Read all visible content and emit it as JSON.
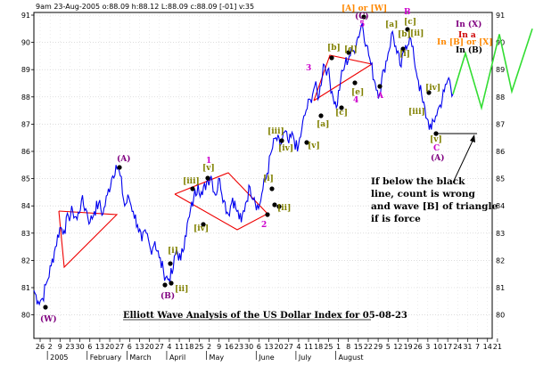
{
  "header": {
    "text": "9am 23-Aug-2005  o:88.09 h:88.12 L:88.09 c:88.09 [-01] v:35"
  },
  "colors": {
    "price": "#0000ee",
    "triangle": "#ee0000",
    "projection": "#33dd33",
    "bracket_label": "#808000",
    "pivot": "#000000",
    "major_label": "#800080",
    "minor_label": "#cc00cc",
    "orange_label": "#ff8800",
    "red_label": "#cc0000"
  },
  "chart_data": {
    "type": "line",
    "title": "Elliott Wave Analysis of the US Dollar Index for 05-08-23",
    "xlabel": "",
    "ylabel": "",
    "ylim": [
      80,
      91
    ],
    "y_ticks": [
      80,
      81,
      82,
      83,
      84,
      85,
      86,
      87,
      88,
      89,
      90,
      91
    ],
    "grid": true,
    "x_tick_labels": [
      "26",
      "2",
      "9",
      "23",
      "30",
      "6",
      "13",
      "20",
      "27",
      "6",
      "13",
      "20",
      "27",
      "4",
      "11",
      "18",
      "25",
      "2",
      "9",
      "16",
      "23",
      "30",
      "6",
      "13",
      "20",
      "27",
      "4",
      "11",
      "18",
      "25",
      "1",
      "8",
      "15",
      "22",
      "29",
      "5",
      "12",
      "19",
      "26",
      "3",
      "10",
      "17",
      "24",
      "31",
      "7",
      "14",
      "21"
    ],
    "x_period_labels": [
      "2005",
      "February",
      "March",
      "April",
      "May",
      "June",
      "July",
      "August"
    ],
    "series": [
      {
        "values": [
          80.9,
          80.5,
          80.6,
          81.2,
          81.8,
          82.5,
          83.2,
          83.1,
          83.6,
          83.8,
          83.5,
          84.2,
          83.9,
          83.4,
          83.8,
          84.1,
          83.7,
          84.4,
          85.0,
          85.5,
          85.1,
          84.0,
          84.3,
          83.8,
          83.3,
          82.7,
          83.0,
          82.4,
          82.7,
          82.1,
          81.6,
          81.3,
          81.5,
          82.4,
          82.0,
          82.9,
          83.6,
          84.3,
          84.8,
          84.4,
          84.9,
          85.1,
          84.4,
          85.0,
          84.2,
          83.7,
          84.3,
          83.8,
          83.4,
          84.1,
          84.7,
          84.3,
          83.9,
          84.6,
          85.2,
          86.0,
          86.5,
          86.2,
          86.7,
          86.3,
          86.6,
          86.0,
          86.8,
          87.5,
          87.9,
          88.4,
          88.0,
          89.2,
          89.0,
          88.2,
          87.6,
          88.6,
          89.2,
          89.5,
          89.7,
          90.2,
          90.7,
          89.9,
          89.2,
          88.5,
          88.1,
          89.0,
          89.6,
          90.4,
          89.6,
          89.1,
          89.9,
          90.2,
          89.4,
          88.6,
          87.8,
          87.2,
          86.8,
          87.3,
          87.7,
          88.2,
          88.7,
          88.1
        ]
      }
    ],
    "annotations": [
      "(W)",
      "(A)",
      "(B)",
      "[i]",
      "[ii]",
      "[iii]",
      "[iv]",
      "[v]",
      "1",
      "2",
      "[i]",
      "[ii]",
      "[iii]",
      "[iv]",
      "[v]",
      "3",
      "[a]",
      "[b]",
      "[c]",
      "[d]",
      "[e]",
      "4",
      "[A] or [W]",
      "(C)",
      "5",
      "A",
      "B",
      "[a]",
      "[b]",
      "[c]",
      "[i]",
      "[ii]",
      "[iii]",
      "[iv]",
      "[v]",
      "C",
      "(A)",
      "In (X)",
      "In a",
      "In [B] or [X]",
      "In (B)"
    ],
    "note": [
      "If below the black",
      "line, count is wrong",
      "and wave [B] of triangle",
      "if is force"
    ]
  }
}
